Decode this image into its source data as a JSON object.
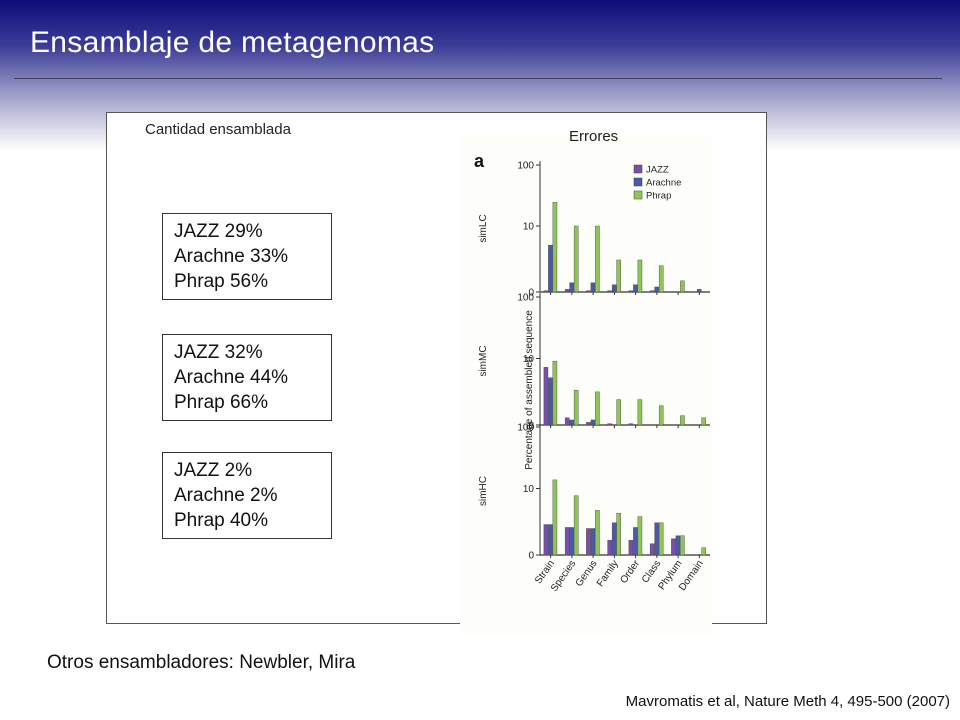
{
  "slide": {
    "title": "Ensamblaje de metagenomas",
    "footer": "Otros ensambladores:  Newbler, Mira",
    "citation": "Mavromatis et al, Nature Meth 4, 495-500 (2007)"
  },
  "panel": {
    "left_label": "Cantidad ensamblada",
    "right_label": "Errores",
    "stat_boxes": [
      {
        "lines": [
          "JAZZ 29%",
          "Arachne 33%",
          "Phrap 56%"
        ]
      },
      {
        "lines": [
          "JAZZ 32%",
          "Arachne 44%",
          "Phrap 66%"
        ]
      },
      {
        "lines": [
          "JAZZ 2%",
          "Arachne 2%",
          "Phrap 40%"
        ]
      }
    ]
  },
  "colors": {
    "JAZZ": "#7b4fa8",
    "Arachne": "#4a5aa8",
    "Phrap": "#8dc657"
  },
  "chart_data": {
    "type": "bar",
    "panel_letter": "a",
    "ylabel": "Percentage of assembled sequence",
    "y_scale": "log",
    "y_ticks": [
      "100",
      "10",
      "0"
    ],
    "categories": [
      "Strain",
      "Species",
      "Genus",
      "Family",
      "Order",
      "Class",
      "Phylum",
      "Domain"
    ],
    "legend": [
      "JAZZ",
      "Arachne",
      "Phrap"
    ],
    "legend_position": "top-right",
    "panels": [
      {
        "name": "simLC",
        "series": [
          {
            "name": "JAZZ",
            "values": [
              0.05,
              0.1,
              0.05,
              0.05,
              0.05,
              0.05,
              0,
              0
            ]
          },
          {
            "name": "Arachne",
            "values": [
              4.5,
              0.4,
              0.4,
              0.3,
              0.3,
              0.2,
              0,
              0.1
            ]
          },
          {
            "name": "Phrap",
            "values": [
              25,
              10,
              10,
              2.2,
              2.2,
              1.6,
              0.5,
              0
            ]
          }
        ]
      },
      {
        "name": "simMC",
        "series": [
          {
            "name": "JAZZ",
            "values": [
              7,
              0.3,
              0.1,
              0.05,
              0.05,
              0,
              0,
              0
            ]
          },
          {
            "name": "Arachne",
            "values": [
              4.5,
              0.2,
              0.2,
              0,
              0,
              0,
              0,
              0
            ]
          },
          {
            "name": "Phrap",
            "values": [
              9,
              2.5,
              2.3,
              1.5,
              1.5,
              1,
              0.4,
              0.3
            ]
          }
        ]
      },
      {
        "name": "simHC",
        "series": [
          {
            "name": "JAZZ",
            "values": [
              2,
              1.7,
              1.6,
              0.7,
              0.7,
              0.5,
              0.8,
              0
            ]
          },
          {
            "name": "Arachne",
            "values": [
              2,
              1.7,
              1.6,
              2.2,
              1.7,
              2.2,
              1,
              0
            ]
          },
          {
            "name": "Phrap",
            "values": [
              14,
              7.5,
              4,
              3.5,
              3,
              2.2,
              1,
              0.3
            ]
          }
        ]
      }
    ]
  }
}
